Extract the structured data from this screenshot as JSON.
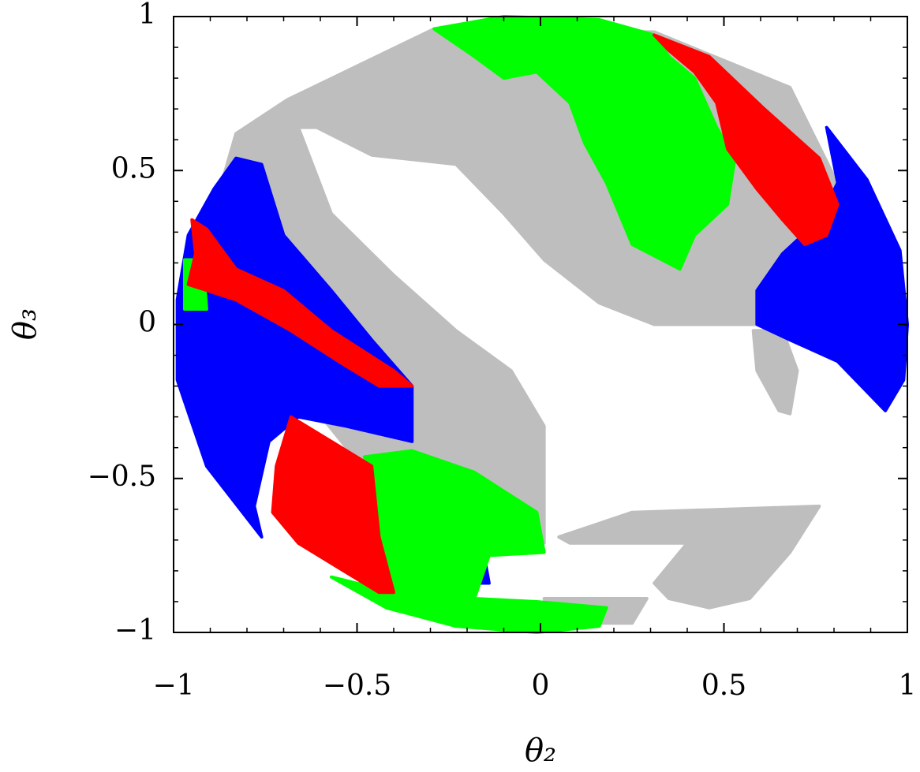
{
  "chart_data": {
    "type": "area",
    "x_label": "θ₂",
    "y_label": "θ₃",
    "xlim": [
      -1,
      1
    ],
    "ylim": [
      -1,
      1
    ],
    "xticks": [
      {
        "value": -1,
        "label": "−1"
      },
      {
        "value": -0.5,
        "label": "−0.5"
      },
      0,
      0.5,
      1
    ],
    "yticks": [
      {
        "value": -1,
        "label": "−1"
      },
      {
        "value": -0.5,
        "label": "−0.5"
      },
      0,
      0.5,
      1
    ],
    "xminorticks": [
      -0.9,
      -0.8,
      -0.7,
      -0.6,
      -0.4,
      -0.3,
      -0.2,
      -0.1,
      0.1,
      0.2,
      0.3,
      0.4,
      0.6,
      0.7,
      0.8,
      0.9
    ],
    "yminorticks": [
      -0.9,
      -0.8,
      -0.7,
      -0.6,
      -0.4,
      -0.3,
      -0.2,
      -0.1,
      0.1,
      0.2,
      0.3,
      0.4,
      0.6,
      0.7,
      0.8,
      0.9
    ],
    "series": [
      {
        "color": "#bebebe",
        "x": [
          -0.83,
          -0.69,
          -0.29,
          0.31,
          0.68,
          1,
          0.89,
          0.68,
          0.59,
          0.31,
          0.16,
          0.01,
          -0.1,
          -0.23,
          -0.46,
          -0.61,
          -0.66,
          -0.57,
          -0.4,
          -0.23,
          -0.08,
          0.01,
          0.01,
          -0.18,
          -0.4,
          -0.61,
          -0.83,
          -0.91,
          null,
          0.05,
          0.25,
          0.76,
          0.68,
          0.57,
          0.46,
          0.35,
          0.31,
          0.4,
          0.08,
          null,
          0.58,
          0.66,
          0.7,
          0.68,
          0.65,
          0.59,
          null,
          0.01,
          0.29,
          0.25,
          0.03
        ],
        "y": [
          0.62,
          0.73,
          0.96,
          0.95,
          0.77,
          0,
          -0.05,
          -0.02,
          0,
          0,
          0.07,
          0.21,
          0.36,
          0.52,
          0.55,
          0.64,
          0.64,
          0.36,
          0.16,
          -0.02,
          -0.15,
          -0.33,
          -0.71,
          -0.74,
          -0.59,
          -0.28,
          0.03,
          0.29,
          null,
          -0.69,
          -0.61,
          -0.59,
          -0.74,
          -0.89,
          -0.92,
          -0.89,
          -0.84,
          -0.71,
          -0.71,
          null,
          -0.02,
          -0.02,
          -0.15,
          -0.29,
          -0.28,
          -0.15,
          null,
          -0.89,
          -0.89,
          -0.97,
          -0.97
        ]
      },
      {
        "color": "#0000ff",
        "x": [
          -0.83,
          -0.76,
          -0.7,
          -0.57,
          -0.46,
          -0.35,
          -0.35,
          -0.53,
          -0.66,
          -0.74,
          -0.78,
          -0.76,
          -0.91,
          -0.99,
          -0.99,
          -0.96,
          -0.89,
          null,
          0.78,
          0.89,
          0.98,
          1,
          0.99,
          0.94,
          0.81,
          0.68,
          0.59,
          0.59,
          0.66,
          0.76,
          0.81,
          null,
          -0.27,
          -0.16,
          -0.14,
          -0.25
        ],
        "y": [
          0.54,
          0.52,
          0.29,
          0.11,
          -0.05,
          -0.2,
          -0.38,
          -0.33,
          -0.3,
          -0.38,
          -0.59,
          -0.69,
          -0.46,
          -0.18,
          0.08,
          0.29,
          0.44,
          null,
          0.64,
          0.47,
          0.24,
          0,
          -0.18,
          -0.28,
          -0.12,
          -0.05,
          0,
          0.11,
          0.23,
          0.34,
          0.46,
          null,
          -0.71,
          -0.71,
          -0.84,
          -0.84
        ]
      },
      {
        "color": "#00ff00",
        "x": [
          -0.29,
          -0.1,
          0.16,
          0.31,
          0.35,
          0.42,
          0.48,
          0.53,
          0.51,
          0.42,
          0.38,
          0.25,
          0.18,
          0.12,
          0.08,
          -0.01,
          -0.1,
          -0.18,
          null,
          -0.48,
          -0.35,
          -0.18,
          -0.01,
          0.01,
          -0.14,
          -0.18,
          -0.01,
          0.18,
          0.16,
          -0.01,
          -0.23,
          -0.42,
          -0.57,
          -0.4,
          -0.44,
          -0.46,
          null,
          -0.97,
          -0.92,
          -0.91,
          -0.97
        ],
        "y": [
          0.96,
          1,
          0.99,
          0.94,
          0.87,
          0.8,
          0.64,
          0.54,
          0.39,
          0.29,
          0.18,
          0.26,
          0.46,
          0.59,
          0.72,
          0.82,
          0.8,
          0.87,
          null,
          -0.43,
          -0.41,
          -0.48,
          -0.61,
          -0.74,
          -0.75,
          -0.89,
          -0.9,
          -0.92,
          -0.98,
          -1,
          -0.98,
          -0.92,
          -0.82,
          -0.87,
          -0.69,
          -0.53,
          null,
          0.21,
          0.21,
          0.05,
          0.05
        ]
      },
      {
        "color": "#ff0000",
        "x": [
          0.31,
          0.46,
          0.61,
          0.76,
          0.81,
          0.78,
          0.72,
          0.66,
          0.59,
          0.51,
          0.48,
          0.42,
          0.35,
          null,
          -0.95,
          -0.91,
          -0.83,
          -0.7,
          -0.57,
          -0.4,
          -0.35,
          -0.44,
          -0.55,
          -0.68,
          -0.83,
          -0.96,
          -0.94,
          null,
          -0.68,
          -0.57,
          -0.46,
          -0.44,
          -0.4,
          -0.44,
          -0.55,
          -0.66,
          -0.73,
          -0.72
        ],
        "y": [
          0.94,
          0.87,
          0.7,
          0.54,
          0.39,
          0.29,
          0.26,
          0.34,
          0.44,
          0.57,
          0.72,
          0.82,
          0.89,
          null,
          0.34,
          0.31,
          0.18,
          0.11,
          -0.02,
          -0.15,
          -0.2,
          -0.2,
          -0.12,
          -0.02,
          0.08,
          0.13,
          0.23,
          null,
          -0.3,
          -0.38,
          -0.46,
          -0.69,
          -0.87,
          -0.87,
          -0.79,
          -0.71,
          -0.61,
          -0.46
        ]
      }
    ]
  }
}
